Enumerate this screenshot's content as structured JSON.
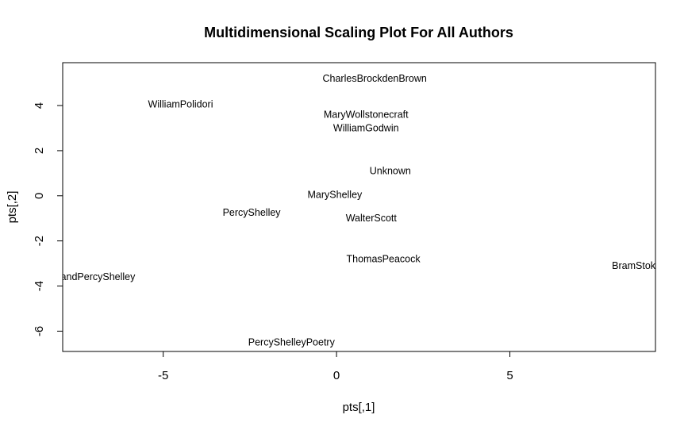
{
  "chart_data": {
    "type": "scatter",
    "title": "Multidimensional Scaling Plot For All Authors",
    "xlabel": "pts[,1]",
    "ylabel": "pts[,2]",
    "xlim": [
      -7.9,
      9.2
    ],
    "ylim": [
      -6.9,
      5.9
    ],
    "xticks": [
      -5,
      0,
      5
    ],
    "yticks": [
      -6,
      -4,
      -2,
      0,
      2,
      4
    ],
    "grid": false,
    "legend": "none",
    "points": [
      {
        "label": "CharlesBrockdenBrown",
        "x": 1.1,
        "y": 5.2
      },
      {
        "label": "WilliamPolidori",
        "x": -4.5,
        "y": 4.05
      },
      {
        "label": "MaryWollstonecraft",
        "x": 0.85,
        "y": 3.6
      },
      {
        "label": "WilliamGodwin",
        "x": 0.85,
        "y": 3.0
      },
      {
        "label": "Unknown",
        "x": 1.55,
        "y": 1.1
      },
      {
        "label": "MaryShelley",
        "x": -0.05,
        "y": 0.05
      },
      {
        "label": "PercyShelley",
        "x": -2.45,
        "y": -0.75
      },
      {
        "label": "WalterScott",
        "x": 1.0,
        "y": -1.0
      },
      {
        "label": "ThomasPeacock",
        "x": 1.35,
        "y": -2.8
      },
      {
        "label": "BramStoker",
        "x": 8.7,
        "y": -3.1
      },
      {
        "label": "MaryandPercyShelley",
        "x": -7.2,
        "y": -3.6
      },
      {
        "label": "PercyShelleyPoetry",
        "x": -1.3,
        "y": -6.5
      }
    ]
  }
}
